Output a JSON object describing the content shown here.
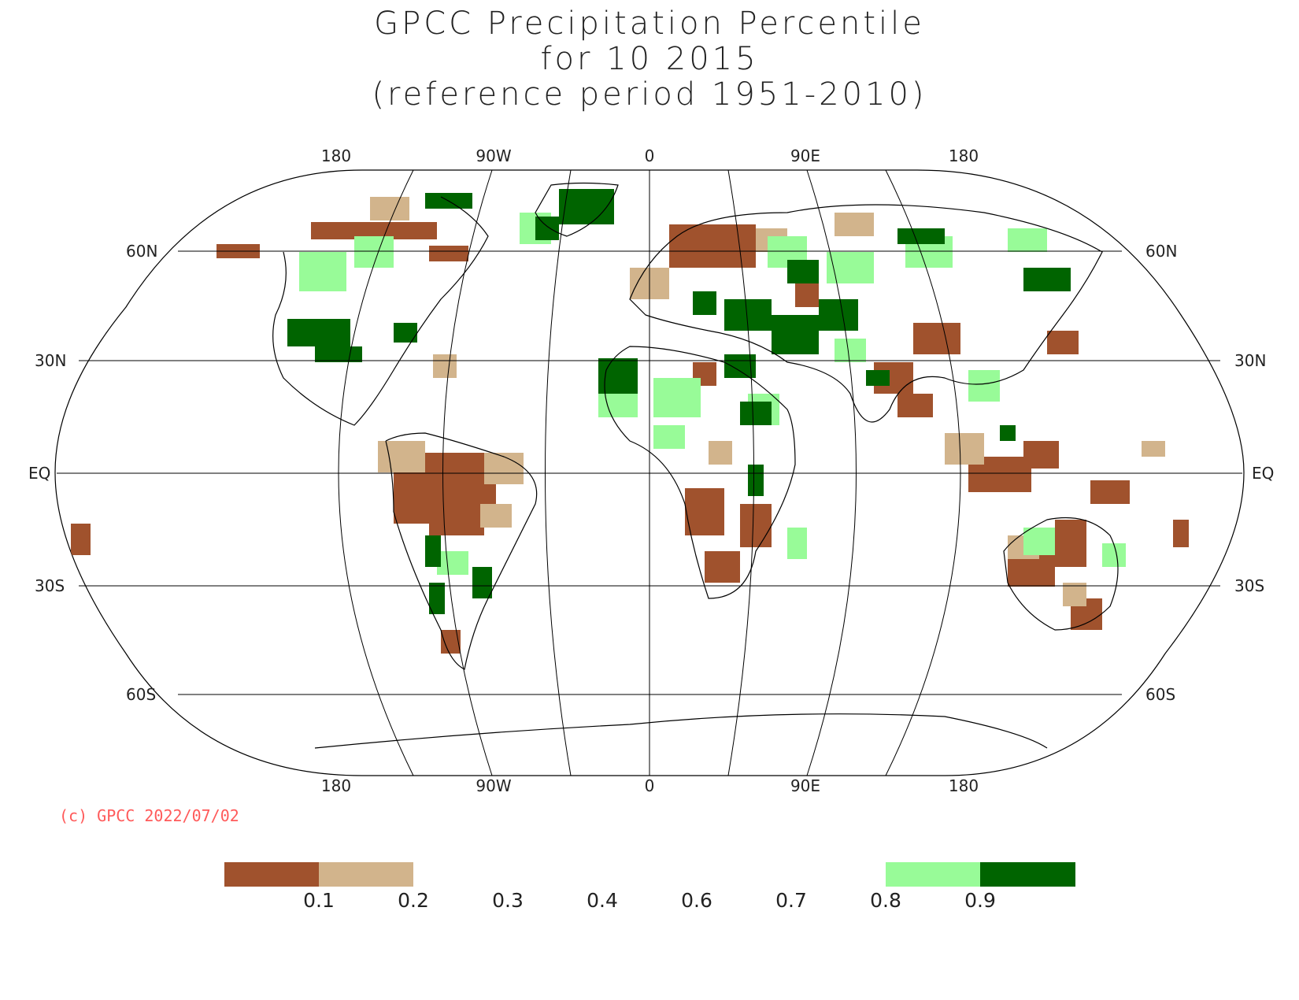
{
  "title": {
    "line1": "GPCC Precipitation Percentile",
    "line2": "for 10 2015",
    "line3": "(reference period 1951-2010)"
  },
  "copyright": "(c) GPCC 2022/07/02",
  "map": {
    "projection": "Robinson (Pacific-centred at 180 edges)",
    "lon_labels_top": [
      "180",
      "90W",
      "0",
      "90E",
      "180"
    ],
    "lon_labels_bottom": [
      "180",
      "90W",
      "0",
      "90E",
      "180"
    ],
    "lat_labels": {
      "60N": "60N",
      "30N": "30N",
      "EQ": "EQ",
      "30S": "30S",
      "60S": "60S"
    }
  },
  "legend": {
    "colors": {
      "very_dry": "#a0522d",
      "dry": "#d2b48c",
      "wet": "#98fb98",
      "very_wet": "#006400"
    },
    "ticks": [
      "0.1",
      "0.2",
      "0.3",
      "0.4",
      "0.6",
      "0.7",
      "0.8",
      "0.9"
    ]
  }
}
